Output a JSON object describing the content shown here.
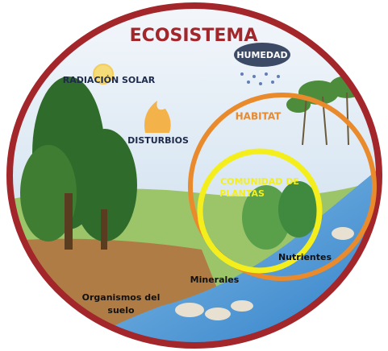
{
  "title": "ECOSISTEMA",
  "labels": {
    "solar": "RADIACIÓN SOLAR",
    "humidity": "HUMEDAD",
    "disturbances": "DISTURBIOS",
    "habitat": "HABITAT",
    "community": [
      "COMUNIDAD DE",
      "PLANTAS"
    ],
    "nutrients": "Nutrientes",
    "minerals": "Minerales",
    "soil_organisms": [
      "Organismos del",
      "suelo"
    ]
  }
}
